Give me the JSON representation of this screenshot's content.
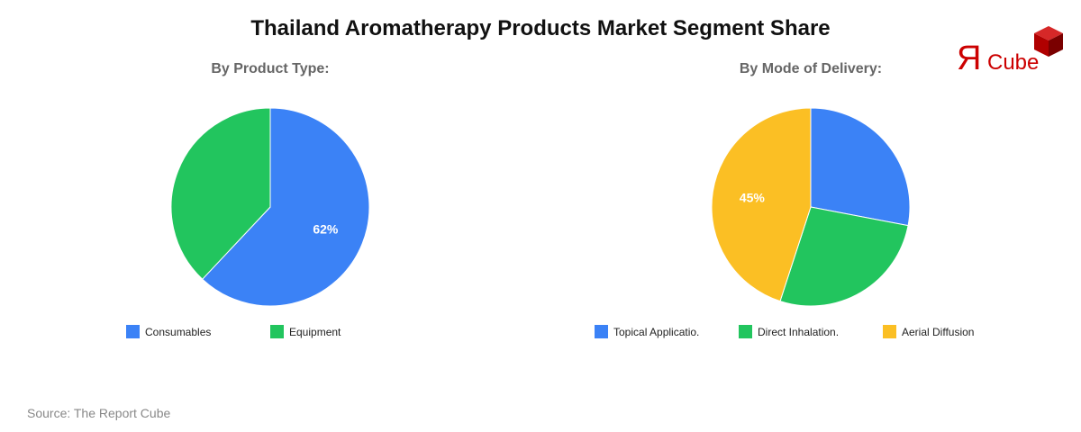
{
  "title": "Thailand Aromatherapy Products Market Segment Share",
  "source": "Source: The Report Cube",
  "logo": {
    "text_r": "Я",
    "text_cube": "Cube",
    "color": "#cc0000"
  },
  "chart_data": [
    {
      "type": "pie",
      "title": "By Product Type:",
      "categories": [
        "Consumables",
        "Equipment"
      ],
      "values": [
        62,
        38
      ],
      "colors": [
        "#3b82f6",
        "#22c55e"
      ],
      "labels_shown": [
        "62%",
        ""
      ],
      "legend_position": "bottom"
    },
    {
      "type": "pie",
      "title": "By Mode of Delivery:",
      "categories": [
        "Topical Applicatio.",
        "Direct Inhalation.",
        "Aerial Diffusion"
      ],
      "values": [
        28,
        27,
        45
      ],
      "colors": [
        "#3b82f6",
        "#22c55e",
        "#fbbf24"
      ],
      "labels_shown": [
        "",
        "",
        "45%"
      ],
      "legend_position": "bottom"
    }
  ]
}
